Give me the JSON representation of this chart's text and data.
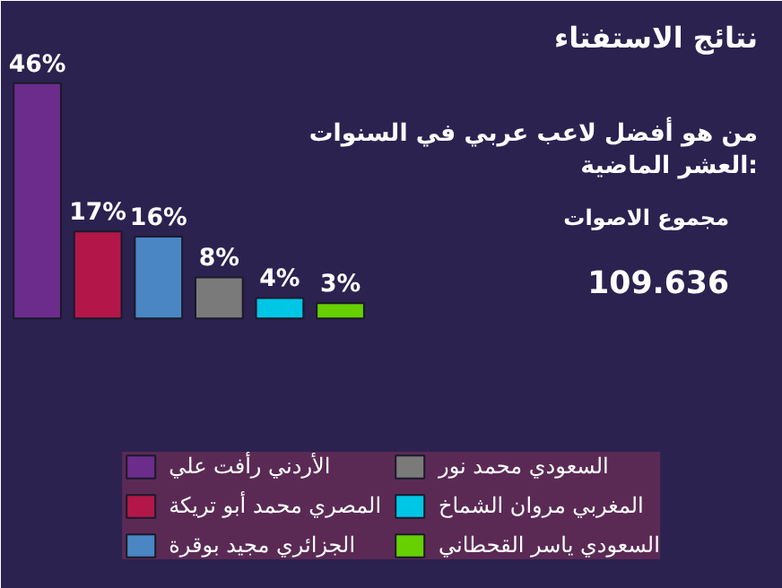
{
  "chart_data": {
    "type": "bar",
    "title": "نتائج الاستفتاء",
    "subtitle": "من هو أفضل لاعب عربي في السنوات العشر الماضية:",
    "annotations": [
      "مجموع الاصوات",
      "109.636"
    ],
    "categories": [
      null,
      null,
      null,
      null,
      null,
      null
    ],
    "stacked": true,
    "series": [
      {
        "name": "الأردني رأفت علي",
        "color": "#6b2c8c",
        "values": [
          46,
          null,
          null,
          null,
          null,
          null
        ],
        "value_labels": [
          "46%",
          null,
          null,
          null,
          null,
          null
        ]
      },
      {
        "name": "المصري محمد أبو تريكة",
        "color": "#b3174a",
        "values": [
          null,
          17,
          null,
          null,
          null,
          null
        ],
        "value_labels": [
          null,
          "17%",
          null,
          null,
          null,
          null
        ]
      },
      {
        "name": "الجزائري مجيد بوقرة",
        "color": "#4a86c4",
        "values": [
          null,
          null,
          16,
          null,
          null,
          null
        ],
        "value_labels": [
          null,
          null,
          "16%",
          null,
          null,
          null
        ]
      },
      {
        "name": "السعودي محمد نور",
        "color": "#7a7a7a",
        "values": [
          null,
          null,
          null,
          8,
          null,
          null
        ],
        "value_labels": [
          null,
          null,
          null,
          "8%",
          null,
          null
        ]
      },
      {
        "name": "المغربي مروان الشماخ",
        "color": "#00c6e6",
        "values": [
          null,
          null,
          null,
          null,
          4,
          null
        ],
        "value_labels": [
          null,
          null,
          null,
          null,
          "4%",
          null
        ]
      },
      {
        "name": "السعودي ياسر القحطاني",
        "color": "#66d000",
        "values": [
          null,
          null,
          null,
          null,
          null,
          3
        ],
        "value_labels": [
          null,
          null,
          null,
          null,
          null,
          "3%"
        ]
      }
    ],
    "legend": "bottom"
  }
}
